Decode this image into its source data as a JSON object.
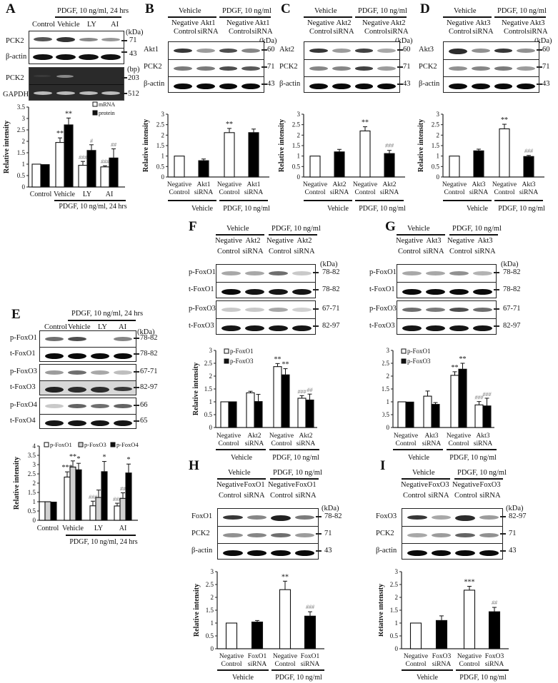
{
  "figure": {
    "panels": [
      "A",
      "B",
      "C",
      "D",
      "E",
      "F",
      "G",
      "H",
      "I"
    ]
  },
  "common": {
    "kda": "(kDa)",
    "bp": "(bp)",
    "ylabel": "Relative intensity",
    "vehicle": "Vehicle",
    "pdgf": "PDGF, 10 ng/ml",
    "pdgf24": "PDGF, 10 ng/ml, 24 hrs",
    "negative": "Negative",
    "control": "Control",
    "sirna": "siRNA",
    "ly": "LY",
    "ai": "AI"
  },
  "panelA": {
    "label": "A",
    "lanes": [
      "Control",
      "Vehicle",
      "LY",
      "AI"
    ],
    "rows": [
      {
        "name": "PCK2",
        "size": "71"
      },
      {
        "name": "β-actin",
        "size": "43"
      },
      {
        "name": "PCK2",
        "size": "203"
      },
      {
        "name": "GAPDH",
        "size": "512"
      }
    ]
  },
  "panelB": {
    "label": "B",
    "lanes": [
      [
        "Negative",
        "Control"
      ],
      [
        "Akt1",
        "siRNA"
      ],
      [
        "Negative",
        "Control"
      ],
      [
        "Akt1",
        "siRNA"
      ]
    ],
    "rows": [
      {
        "name": "Akt1",
        "size": "60"
      },
      {
        "name": "PCK2",
        "size": "71"
      },
      {
        "name": "β-actin",
        "size": "43"
      }
    ]
  },
  "panelC": {
    "label": "C",
    "lanes": [
      [
        "Negative",
        "Control"
      ],
      [
        "Akt2",
        "siRNA"
      ],
      [
        "Negative",
        "Control"
      ],
      [
        "Akt2",
        "siRNA"
      ]
    ],
    "rows": [
      {
        "name": "Akt2",
        "size": "60"
      },
      {
        "name": "PCK2",
        "size": "71"
      },
      {
        "name": "β-actin",
        "size": "43"
      }
    ]
  },
  "panelD": {
    "label": "D",
    "lanes": [
      [
        "Negative",
        "Control"
      ],
      [
        "Akt3",
        "siRNA"
      ],
      [
        "Negative",
        "Control"
      ],
      [
        "Akt3",
        "siRNA"
      ]
    ],
    "rows": [
      {
        "name": "Akt3",
        "size": "60"
      },
      {
        "name": "PCK2",
        "size": "71"
      },
      {
        "name": "β-actin",
        "size": "43"
      }
    ]
  },
  "panelE": {
    "label": "E",
    "lanes": [
      "Control",
      "Vehicle",
      "LY",
      "AI"
    ],
    "rows": [
      {
        "name": "p-FoxO1",
        "size": "78-82"
      },
      {
        "name": "t-FoxO1",
        "size": "78-82"
      },
      {
        "name": "p-FoxO3",
        "size": "67-71"
      },
      {
        "name": "t-FoxO3",
        "size": "82-97"
      },
      {
        "name": "p-FoxO4",
        "size": "66"
      },
      {
        "name": "t-FoxO4",
        "size": "65"
      }
    ]
  },
  "panelF": {
    "label": "F",
    "lanes": [
      [
        "Negative",
        "Control"
      ],
      [
        "Akt2",
        "siRNA"
      ],
      [
        "Negative",
        "Control"
      ],
      [
        "Akt2",
        "siRNA"
      ]
    ],
    "rows": [
      {
        "name": "p-FoxO1",
        "size": "78-82"
      },
      {
        "name": "t-FoxO1",
        "size": "78-82"
      },
      {
        "name": "p-FoxO3",
        "size": "67-71"
      },
      {
        "name": "t-FoxO3",
        "size": "82-97"
      }
    ]
  },
  "panelG": {
    "label": "G",
    "lanes": [
      [
        "Negative",
        "Control"
      ],
      [
        "Akt3",
        "siRNA"
      ],
      [
        "Negative",
        "Control"
      ],
      [
        "Akt3",
        "siRNA"
      ]
    ],
    "rows": [
      {
        "name": "p-FoxO1",
        "size": "78-82"
      },
      {
        "name": "t-FoxO1",
        "size": "78-82"
      },
      {
        "name": "p-FoxO3",
        "size": "67-71"
      },
      {
        "name": "t-FoxO3",
        "size": "82-97"
      }
    ]
  },
  "panelH": {
    "label": "H",
    "lanes": [
      [
        "Negative",
        "Control"
      ],
      [
        "FoxO1",
        "siRNA"
      ],
      [
        "Negative",
        "Control"
      ],
      [
        "FoxO1",
        "siRNA"
      ]
    ],
    "rows": [
      {
        "name": "FoxO1",
        "size": "78-82"
      },
      {
        "name": "PCK2",
        "size": "71"
      },
      {
        "name": "β-actin",
        "size": "43"
      }
    ]
  },
  "panelI": {
    "label": "I",
    "lanes": [
      [
        "Negative",
        "Control"
      ],
      [
        "FoxO3",
        "siRNA"
      ],
      [
        "Negative",
        "Control"
      ],
      [
        "FoxO3",
        "siRNA"
      ]
    ],
    "rows": [
      {
        "name": "FoxO3",
        "size": "82-97"
      },
      {
        "name": "PCK2",
        "size": "71"
      },
      {
        "name": "β-actin",
        "size": "43"
      }
    ]
  },
  "chart_data": [
    {
      "panel": "A",
      "type": "bar",
      "categories": [
        "Control",
        "Vehicle",
        "LY",
        "AI"
      ],
      "group_label": "PDGF, 10 ng/ml, 24 hrs",
      "series": [
        {
          "name": "mRNA",
          "color": "#ffffff",
          "values": [
            1.0,
            1.95,
            0.95,
            0.88
          ],
          "errors": [
            0,
            0.2,
            0.17,
            0.05
          ],
          "annotations": [
            "",
            "**",
            "###",
            "###"
          ]
        },
        {
          "name": "protein",
          "color": "#000000",
          "values": [
            0.98,
            2.72,
            1.6,
            1.27
          ],
          "errors": [
            0,
            0.3,
            0.25,
            0.4
          ],
          "annotations": [
            "",
            "**",
            "#",
            "##"
          ]
        }
      ],
      "xlabel": "",
      "ylabel": "Relative intensity",
      "ylim": [
        0,
        3.5
      ],
      "yticks": [
        0,
        0.5,
        1,
        1.5,
        2,
        2.5,
        3,
        3.5
      ],
      "legend_position": "top-right"
    },
    {
      "panel": "B",
      "type": "bar",
      "categories": [
        "Negative Control",
        "Akt1 siRNA",
        "Negative Control",
        "Akt1 siRNA"
      ],
      "groups": [
        "Vehicle",
        "PDGF, 10 ng/ml"
      ],
      "values": [
        1.0,
        0.78,
        2.12,
        2.12
      ],
      "errors": [
        0,
        0.08,
        0.2,
        0.17
      ],
      "colors": [
        "#ffffff",
        "#000000",
        "#ffffff",
        "#000000"
      ],
      "annotations": [
        "",
        "",
        "**",
        ""
      ],
      "ylabel": "Relative intensity",
      "ylim": [
        0,
        3
      ],
      "yticks": [
        0,
        0.5,
        1,
        1.5,
        2,
        2.5,
        3
      ]
    },
    {
      "panel": "C",
      "type": "bar",
      "categories": [
        "Negative Control",
        "Akt2 siRNA",
        "Negative Control",
        "Akt2 siRNA"
      ],
      "groups": [
        "Vehicle",
        "PDGF, 10 ng/ml"
      ],
      "values": [
        1.0,
        1.2,
        2.2,
        1.12
      ],
      "errors": [
        0,
        0.12,
        0.2,
        0.15
      ],
      "colors": [
        "#ffffff",
        "#000000",
        "#ffffff",
        "#000000"
      ],
      "annotations": [
        "",
        "",
        "**",
        "###"
      ],
      "ylabel": "Relative intensity",
      "ylim": [
        0,
        3
      ],
      "yticks": [
        0,
        0.5,
        1,
        1.5,
        2,
        2.5,
        3
      ]
    },
    {
      "panel": "D",
      "type": "bar",
      "categories": [
        "Negative Control",
        "Akt3 siRNA",
        "Negative Control",
        "Akt3 siRNA"
      ],
      "groups": [
        "Vehicle",
        "PDGF, 10 ng/ml"
      ],
      "values": [
        1.0,
        1.25,
        2.3,
        0.98
      ],
      "errors": [
        0,
        0.08,
        0.22,
        0.05
      ],
      "colors": [
        "#ffffff",
        "#000000",
        "#ffffff",
        "#000000"
      ],
      "annotations": [
        "",
        "",
        "**",
        "###"
      ],
      "ylabel": "Relative intensity",
      "ylim": [
        0,
        3
      ],
      "yticks": [
        0,
        0.5,
        1,
        1.5,
        2,
        2.5,
        3
      ]
    },
    {
      "panel": "E",
      "type": "bar",
      "categories": [
        "Control",
        "Vehicle",
        "LY",
        "AI"
      ],
      "group_label": "PDGF, 10 ng/ml, 24 hrs",
      "series": [
        {
          "name": "p-FoxO1",
          "color": "#ffffff",
          "values": [
            1.0,
            2.33,
            0.78,
            0.77
          ],
          "errors": [
            0,
            0.28,
            0.25,
            0.15
          ],
          "annotations": [
            "",
            "***",
            "###",
            "###"
          ]
        },
        {
          "name": "p-FoxO3",
          "color": "#d0d0d0",
          "values": [
            1.0,
            2.87,
            1.23,
            1.18
          ],
          "errors": [
            0,
            0.33,
            0.4,
            0.3
          ],
          "annotations": [
            "",
            "**",
            "",
            "##"
          ]
        },
        {
          "name": "p-FoxO4",
          "color": "#000000",
          "values": [
            0.98,
            2.72,
            2.62,
            2.55
          ],
          "errors": [
            0,
            0.35,
            0.55,
            0.48
          ],
          "annotations": [
            "",
            "*",
            "*",
            "*"
          ]
        }
      ],
      "ylabel": "Relative intensity",
      "ylim": [
        0,
        4
      ],
      "yticks": [
        0,
        0.5,
        1,
        1.5,
        2,
        2.5,
        3,
        3.5,
        4
      ],
      "legend_position": "top"
    },
    {
      "panel": "F",
      "type": "bar",
      "categories": [
        "Negative Control",
        "Akt2 siRNA",
        "Negative Control",
        "Akt2 siRNA"
      ],
      "groups": [
        "Vehicle",
        "PDGF, 10 ng/ml"
      ],
      "series": [
        {
          "name": "p-FoxO1",
          "color": "#ffffff",
          "values": [
            1.0,
            1.35,
            2.37,
            1.14
          ],
          "errors": [
            0,
            0.06,
            0.12,
            0.1
          ],
          "annotations": [
            "",
            "",
            "**",
            "###"
          ]
        },
        {
          "name": "p-FoxO3",
          "color": "#000000",
          "values": [
            1.0,
            1.01,
            2.05,
            1.07
          ],
          "errors": [
            0,
            0.28,
            0.24,
            0.23
          ],
          "annotations": [
            "",
            "",
            "**",
            "##"
          ]
        }
      ],
      "ylabel": "Relative intensity",
      "ylim": [
        0,
        3
      ],
      "yticks": [
        0,
        0.5,
        1,
        1.5,
        2,
        2.5,
        3
      ],
      "legend_position": "top-left"
    },
    {
      "panel": "G",
      "type": "bar",
      "categories": [
        "Negative Control",
        "Akt3 siRNA",
        "Negative Control",
        "Akt3 siRNA"
      ],
      "groups": [
        "Vehicle",
        "PDGF, 10 ng/ml"
      ],
      "series": [
        {
          "name": "p-FoxO1",
          "color": "#ffffff",
          "values": [
            1.0,
            1.22,
            2.03,
            0.88
          ],
          "errors": [
            0,
            0.2,
            0.14,
            0.13
          ],
          "annotations": [
            "",
            "",
            "**",
            "###"
          ]
        },
        {
          "name": "p-FoxO3",
          "color": "#000000",
          "values": [
            0.99,
            0.9,
            2.27,
            0.84
          ],
          "errors": [
            0,
            0.07,
            0.23,
            0.3
          ],
          "annotations": [
            "",
            "",
            "**",
            "###"
          ]
        }
      ],
      "ylabel": "Relative intensity",
      "ylim": [
        0,
        3
      ],
      "yticks": [
        0,
        0.5,
        1,
        1.5,
        2,
        2.5,
        3
      ],
      "legend_position": "top-left"
    },
    {
      "panel": "H",
      "type": "bar",
      "categories": [
        "Negative Control",
        "FoxO1 siRNA",
        "Negative Control",
        "FoxO1 siRNA"
      ],
      "groups": [
        "Vehicle",
        "PDGF, 10 ng/ml"
      ],
      "values": [
        1.0,
        1.04,
        2.3,
        1.27
      ],
      "errors": [
        0,
        0.06,
        0.33,
        0.17
      ],
      "colors": [
        "#ffffff",
        "#000000",
        "#ffffff",
        "#000000"
      ],
      "annotations": [
        "",
        "",
        "**",
        "###"
      ],
      "ylabel": "Relative intensity",
      "ylim": [
        0,
        3
      ],
      "yticks": [
        0,
        0.5,
        1,
        1.5,
        2,
        2.5,
        3
      ]
    },
    {
      "panel": "I",
      "type": "bar",
      "categories": [
        "Negative Control",
        "FoxO3 siRNA",
        "Negative Control",
        "FoxO3 siRNA"
      ],
      "groups": [
        "Vehicle",
        "PDGF, 10 ng/ml"
      ],
      "values": [
        1.0,
        1.1,
        2.28,
        1.44
      ],
      "errors": [
        0,
        0.18,
        0.15,
        0.17
      ],
      "colors": [
        "#ffffff",
        "#000000",
        "#ffffff",
        "#000000"
      ],
      "annotations": [
        "",
        "",
        "***",
        "##"
      ],
      "ylabel": "Relative intensity",
      "ylim": [
        0,
        3
      ],
      "yticks": [
        0,
        0.5,
        1,
        1.5,
        2,
        2.5,
        3
      ]
    }
  ]
}
